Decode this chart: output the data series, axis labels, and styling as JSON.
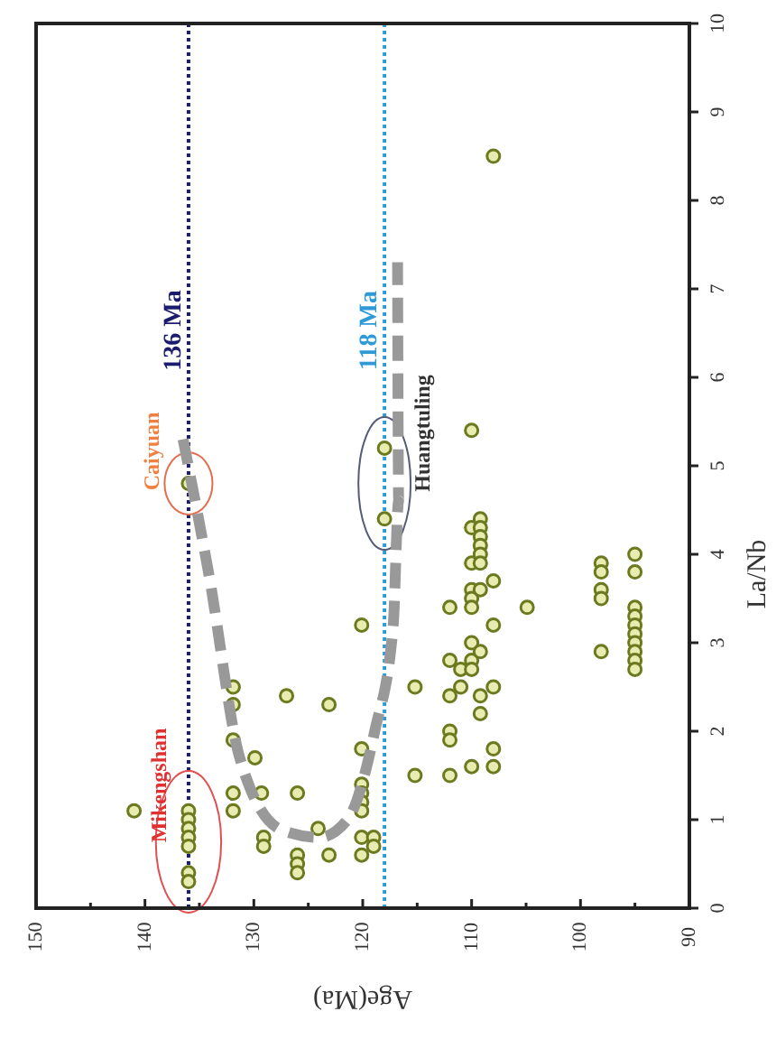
{
  "chart_data": {
    "type": "scatter",
    "xlabel": "Age(Ma)",
    "ylabel": "La/Nb",
    "xlim": [
      150,
      90
    ],
    "xticks": [
      150,
      {
        "value": 145,
        "label": null
      },
      140,
      {
        "value": 135,
        "label": null
      },
      130,
      {
        "value": 125,
        "label": null
      },
      120,
      {
        "value": 115,
        "label": null
      },
      110,
      {
        "value": 105,
        "label": null
      },
      100,
      {
        "value": 95,
        "label": null
      },
      90
    ],
    "ylim": [
      0,
      10
    ],
    "yticks": [
      0,
      1,
      2,
      3,
      4,
      5,
      6,
      7,
      8,
      9,
      10
    ],
    "grid": false,
    "marker": "circle",
    "ref_lines": [
      {
        "axis": "x",
        "value": 136,
        "label": "136 Ma",
        "color": "#1c1c6e",
        "line_style": "dotted"
      },
      {
        "axis": "x",
        "value": 118,
        "label": "118 Ma",
        "color": "#2e9ad8",
        "line_style": "dotted"
      }
    ],
    "annotations": [
      "Mikengshan",
      "Caiyuan",
      "Huangtuling"
    ],
    "series": [
      {
        "type": "scatter",
        "color": "#6b7a1e",
        "x": [
          141,
          136,
          136,
          136,
          136,
          136,
          136,
          136,
          136,
          131.9,
          131.9,
          131.9,
          131.9,
          131.9,
          129.9,
          129.3,
          129.1,
          129.1,
          127,
          126,
          126,
          126,
          126,
          124.1,
          123.1,
          123.1,
          120.1,
          120.1,
          120.1,
          120.1,
          120.1,
          120.1,
          120.1,
          120.1,
          119,
          119,
          118,
          118,
          115.2,
          115.2,
          112,
          112,
          112,
          112,
          112,
          112,
          111,
          111,
          110,
          110,
          110,
          110,
          110,
          110,
          110,
          110,
          110,
          110,
          109.2,
          109.2,
          109.2,
          109.2,
          109.2,
          109.2,
          109.2,
          109.2,
          109.2,
          109.2,
          108,
          108,
          108,
          108,
          108,
          108,
          104.9,
          98.1,
          98.1,
          98.1,
          98.1,
          98.1,
          95,
          95,
          95,
          95,
          95,
          95,
          95,
          95,
          95,
          95
        ],
        "values": [
          1.1,
          1.1,
          1,
          0.9,
          0.8,
          0.7,
          0.4,
          0.3,
          4.8,
          2.5,
          2.3,
          1.9,
          1.3,
          1.1,
          1.7,
          1.3,
          0.8,
          0.7,
          2.4,
          1.3,
          0.6,
          0.5,
          0.4,
          0.9,
          2.3,
          0.6,
          3.2,
          1.8,
          1.4,
          1.3,
          1.2,
          1.1,
          0.8,
          0.6,
          0.8,
          0.7,
          4.4,
          5.2,
          2.5,
          1.5,
          3.4,
          2.8,
          2.4,
          2,
          1.9,
          1.5,
          2.7,
          2.5,
          5.4,
          4.3,
          3.9,
          3.6,
          3.5,
          3.4,
          3,
          2.8,
          2.7,
          1.6,
          4.4,
          4.3,
          4.2,
          4.1,
          4,
          3.9,
          3.6,
          2.9,
          2.4,
          2.2,
          8.5,
          3.7,
          3.2,
          2.5,
          1.8,
          1.6,
          3.4,
          3.9,
          3.8,
          3.6,
          3.5,
          2.9,
          4,
          3.8,
          3.4,
          3.3,
          3.2,
          3.1,
          3,
          2.9,
          2.8,
          2.7
        ]
      },
      {
        "type": "line",
        "color": "#999999",
        "line_style": "dashed",
        "marker": "none",
        "x": [
          136.5,
          134.1,
          131.3,
          127.4,
          124,
          121.4,
          118.9,
          117.2,
          116.7,
          116.8
        ],
        "values": [
          5.3,
          3.75,
          1.7,
          0.88,
          0.8,
          1,
          2,
          3.2,
          4.6,
          7.3
        ]
      }
    ]
  }
}
